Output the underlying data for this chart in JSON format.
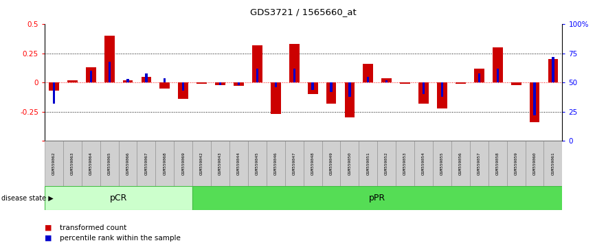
{
  "title": "GDS3721 / 1565660_at",
  "samples": [
    "GSM559062",
    "GSM559063",
    "GSM559064",
    "GSM559065",
    "GSM559066",
    "GSM559067",
    "GSM559068",
    "GSM559069",
    "GSM559042",
    "GSM559043",
    "GSM559044",
    "GSM559045",
    "GSM559046",
    "GSM559047",
    "GSM559048",
    "GSM559049",
    "GSM559050",
    "GSM559051",
    "GSM559052",
    "GSM559053",
    "GSM559054",
    "GSM559055",
    "GSM559056",
    "GSM559057",
    "GSM559058",
    "GSM559059",
    "GSM559060",
    "GSM559061"
  ],
  "transformed_count": [
    -0.07,
    0.02,
    0.13,
    0.4,
    0.02,
    0.05,
    -0.05,
    -0.14,
    -0.01,
    -0.02,
    -0.03,
    0.32,
    -0.27,
    0.33,
    -0.1,
    -0.18,
    -0.3,
    0.16,
    0.04,
    -0.01,
    -0.18,
    -0.22,
    -0.01,
    0.12,
    0.3,
    -0.02,
    -0.34,
    0.2
  ],
  "percentile_rank": [
    32,
    50,
    60,
    68,
    53,
    58,
    54,
    43,
    50,
    48,
    48,
    62,
    46,
    62,
    44,
    42,
    38,
    55,
    52,
    50,
    40,
    38,
    50,
    58,
    62,
    50,
    22,
    72
  ],
  "pcr_count": 8,
  "ppr_count": 20,
  "bar_color_red": "#cc0000",
  "bar_color_blue": "#0000cc",
  "ylim_left": [
    -0.5,
    0.5
  ],
  "ylim_right": [
    0,
    100
  ],
  "yticks_left": [
    -0.5,
    -0.25,
    0.0,
    0.25,
    0.5
  ],
  "ytick_labels_left": [
    "",
    "-0.25",
    "0",
    "0.25",
    "0.5"
  ],
  "yticks_right": [
    0,
    25,
    50,
    75,
    100
  ],
  "ytick_labels_right": [
    "0",
    "25",
    "50",
    "75",
    "100%"
  ],
  "hlines": [
    0.25,
    0.0,
    -0.25
  ],
  "pcr_color_light": "#ccffcc",
  "ppr_color_bright": "#55dd55",
  "pcr_label": "pCR",
  "ppr_label": "pPR",
  "disease_state_label": "disease state",
  "legend": [
    "transformed count",
    "percentile rank within the sample"
  ]
}
